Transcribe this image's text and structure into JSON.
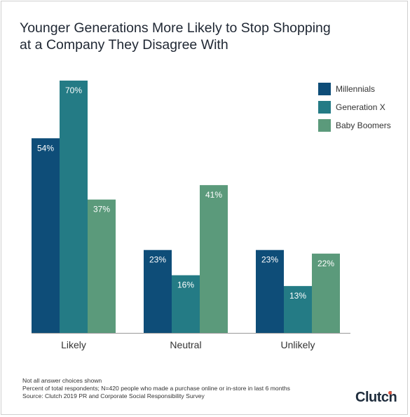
{
  "title_lines": [
    "Younger Generations More Likely to Stop Shopping",
    "at a Company They Disagree With"
  ],
  "chart_data": {
    "type": "bar",
    "title": "Younger Generations More Likely to Stop Shopping at a Company They Disagree With",
    "categories": [
      "Likely",
      "Neutral",
      "Unlikely"
    ],
    "series": [
      {
        "name": "Millennials",
        "values": [
          54,
          23,
          23
        ],
        "color": "#0e4d78"
      },
      {
        "name": "Generation X",
        "values": [
          70,
          16,
          13
        ],
        "color": "#247b85"
      },
      {
        "name": "Baby Boomers",
        "values": [
          37,
          41,
          22
        ],
        "color": "#5b9a7b"
      }
    ],
    "value_suffix": "%",
    "ylim": [
      0,
      70
    ],
    "legend": "top-right",
    "grid": false
  },
  "footnotes": [
    "Not all answer choices shown",
    "Percent of total respondents; N=420 people who made a purchase online or in-store in last 6 months",
    "Source: Clutch 2019 PR and Corporate Social Responsibility Survey"
  ],
  "brand": {
    "text": "Clutch",
    "dot_color": "#e0553f"
  }
}
